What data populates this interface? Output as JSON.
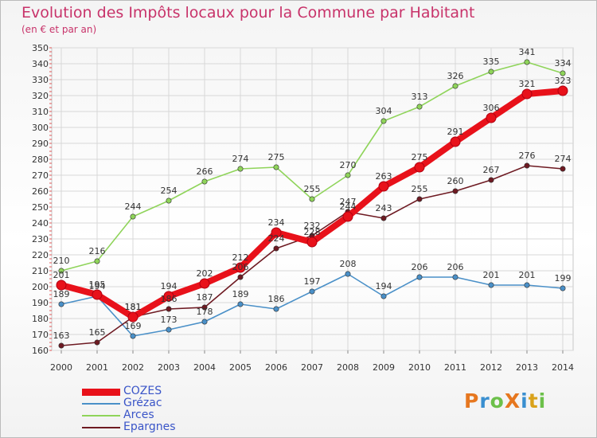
{
  "chart_data": {
    "type": "line",
    "title": "Evolution des Impôts locaux pour la Commune par Habitant",
    "subtitle": "(en € et par an)",
    "categories": [
      "2000",
      "2001",
      "2002",
      "2003",
      "2004",
      "2005",
      "2006",
      "2007",
      "2008",
      "2009",
      "2010",
      "2011",
      "2012",
      "2013",
      "2014"
    ],
    "ylim": [
      160,
      350
    ],
    "yticks": [
      160,
      170,
      180,
      190,
      200,
      210,
      220,
      230,
      240,
      250,
      260,
      270,
      280,
      290,
      300,
      310,
      320,
      330,
      340,
      350
    ],
    "grid": true,
    "legend_position": "bottom-left",
    "series": [
      {
        "name": "COZES",
        "color": "#e8111a",
        "emphasis": true,
        "values": [
          201,
          195,
          181,
          194,
          202,
          212,
          234,
          228,
          244,
          263,
          275,
          291,
          306,
          321,
          323
        ]
      },
      {
        "name": "Grézac",
        "color": "#4a90c8",
        "values": [
          189,
          194,
          169,
          173,
          178,
          189,
          186,
          197,
          208,
          194,
          206,
          206,
          201,
          201,
          199
        ]
      },
      {
        "name": "Arces",
        "color": "#8fd45a",
        "values": [
          210,
          216,
          244,
          254,
          266,
          274,
          275,
          255,
          270,
          304,
          313,
          326,
          335,
          341,
          334
        ]
      },
      {
        "name": "Epargnes",
        "color": "#6e1a22",
        "values": [
          163,
          165,
          181,
          186,
          187,
          206,
          224,
          232,
          247,
          243,
          255,
          260,
          267,
          276,
          274
        ]
      }
    ]
  },
  "logo": {
    "text": "ProXiti",
    "colors": [
      "#e6771f",
      "#3a8fd0",
      "#6cc04a",
      "#e6771f",
      "#3a8fd0",
      "#d9a21b",
      "#6cc04a"
    ]
  }
}
